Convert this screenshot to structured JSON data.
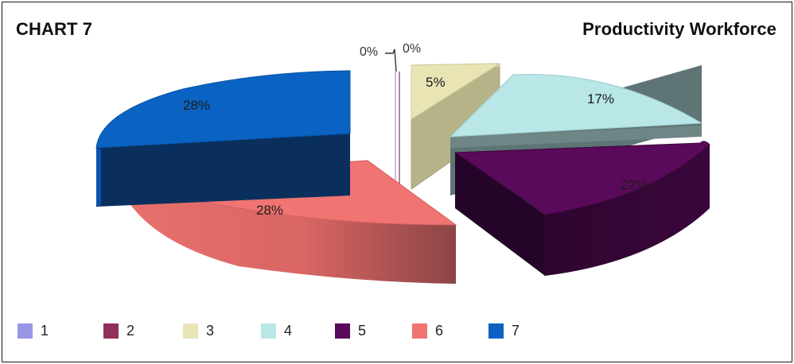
{
  "header": {
    "chart_id": "CHART 7",
    "title": "Productivity Workforce"
  },
  "chart_data": {
    "type": "pie",
    "style": "3d-exploded",
    "categories": [
      "1",
      "2",
      "3",
      "4",
      "5",
      "6",
      "7"
    ],
    "values": [
      0,
      0,
      5,
      17,
      22,
      28,
      28
    ],
    "value_labels": [
      "0%",
      "0%",
      "5%",
      "17%",
      "22%",
      "28%",
      "28%"
    ],
    "colors": [
      "#9a94e6",
      "#8f2f5c",
      "#e8e4b4",
      "#b9e6e6",
      "#5a0a5a",
      "#ef7472",
      "#0a63c2"
    ],
    "legend_position": "bottom",
    "title": "Productivity Workforce"
  },
  "legend": {
    "items": [
      {
        "label": "1",
        "color": "#9a94e6"
      },
      {
        "label": "2",
        "color": "#8f2f5c"
      },
      {
        "label": "3",
        "color": "#e8e4b4"
      },
      {
        "label": "4",
        "color": "#b9e6e6"
      },
      {
        "label": "5",
        "color": "#5a0a5a"
      },
      {
        "label": "6",
        "color": "#ef7472"
      },
      {
        "label": "7",
        "color": "#0a63c2"
      }
    ]
  }
}
